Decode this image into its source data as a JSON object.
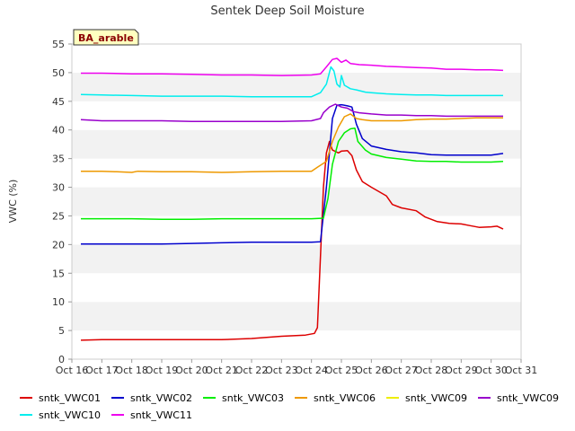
{
  "chart_data": {
    "type": "line",
    "title": "Sentek Deep Soil Moisture",
    "ylabel": "VWC (%)",
    "xlabel": "",
    "badge": "BA_arable",
    "xlim": [
      16,
      31
    ],
    "ylim": [
      0,
      55
    ],
    "x_ticks": [
      "Oct 16",
      "Oct 17",
      "Oct 18",
      "Oct 19",
      "Oct 20",
      "Oct 21",
      "Oct 22",
      "Oct 23",
      "Oct 24",
      "Oct 25",
      "Oct 26",
      "Oct 27",
      "Oct 28",
      "Oct 29",
      "Oct 30",
      "Oct 31"
    ],
    "y_ticks": [
      0,
      5,
      10,
      15,
      20,
      25,
      30,
      35,
      40,
      45,
      50,
      55
    ],
    "grid": "horizontal bands",
    "legend_position": "bottom",
    "series": [
      {
        "name": "sntk_VWC01",
        "color": "#dd0000",
        "points": [
          [
            16.3,
            3.3
          ],
          [
            17,
            3.4
          ],
          [
            18,
            3.4
          ],
          [
            19,
            3.4
          ],
          [
            20,
            3.4
          ],
          [
            21,
            3.4
          ],
          [
            22,
            3.6
          ],
          [
            23,
            4.0
          ],
          [
            23.8,
            4.2
          ],
          [
            24.1,
            4.5
          ],
          [
            24.2,
            5.5
          ],
          [
            24.4,
            30
          ],
          [
            24.5,
            36
          ],
          [
            24.6,
            38
          ],
          [
            24.7,
            36.5
          ],
          [
            24.9,
            36
          ],
          [
            25.0,
            36.3
          ],
          [
            25.2,
            36.4
          ],
          [
            25.35,
            35.5
          ],
          [
            25.5,
            33
          ],
          [
            25.7,
            31
          ],
          [
            26,
            30
          ],
          [
            26.5,
            28.5
          ],
          [
            26.7,
            27
          ],
          [
            27,
            26.4
          ],
          [
            27.5,
            25.9
          ],
          [
            27.8,
            24.8
          ],
          [
            28.2,
            24
          ],
          [
            28.6,
            23.7
          ],
          [
            29,
            23.6
          ],
          [
            29.3,
            23.3
          ],
          [
            29.6,
            23
          ],
          [
            30,
            23.1
          ],
          [
            30.2,
            23.2
          ],
          [
            30.4,
            22.7
          ]
        ]
      },
      {
        "name": "sntk_VWC02",
        "color": "#0000cc",
        "points": [
          [
            16.3,
            20.1
          ],
          [
            17,
            20.1
          ],
          [
            18,
            20.1
          ],
          [
            19,
            20.1
          ],
          [
            20,
            20.2
          ],
          [
            21,
            20.3
          ],
          [
            22,
            20.4
          ],
          [
            23,
            20.4
          ],
          [
            24.0,
            20.4
          ],
          [
            24.3,
            20.5
          ],
          [
            24.5,
            30
          ],
          [
            24.7,
            42
          ],
          [
            24.85,
            44.3
          ],
          [
            25.0,
            44.4
          ],
          [
            25.2,
            44.2
          ],
          [
            25.35,
            44
          ],
          [
            25.5,
            41
          ],
          [
            25.7,
            38.5
          ],
          [
            26,
            37.2
          ],
          [
            26.5,
            36.6
          ],
          [
            27,
            36.2
          ],
          [
            27.5,
            36
          ],
          [
            28,
            35.7
          ],
          [
            28.5,
            35.6
          ],
          [
            29,
            35.6
          ],
          [
            29.5,
            35.6
          ],
          [
            30,
            35.6
          ],
          [
            30.4,
            35.9
          ]
        ]
      },
      {
        "name": "sntk_VWC03",
        "color": "#00ee00",
        "points": [
          [
            16.3,
            24.5
          ],
          [
            17,
            24.5
          ],
          [
            18,
            24.5
          ],
          [
            19,
            24.4
          ],
          [
            20,
            24.4
          ],
          [
            21,
            24.5
          ],
          [
            22,
            24.5
          ],
          [
            23,
            24.5
          ],
          [
            24.0,
            24.5
          ],
          [
            24.4,
            24.6
          ],
          [
            24.55,
            28
          ],
          [
            24.7,
            34
          ],
          [
            24.9,
            38
          ],
          [
            25.1,
            39.5
          ],
          [
            25.3,
            40.2
          ],
          [
            25.45,
            40.3
          ],
          [
            25.55,
            38
          ],
          [
            25.8,
            36.5
          ],
          [
            26,
            35.8
          ],
          [
            26.5,
            35.2
          ],
          [
            27,
            34.9
          ],
          [
            27.5,
            34.6
          ],
          [
            28,
            34.5
          ],
          [
            28.5,
            34.5
          ],
          [
            29,
            34.4
          ],
          [
            29.5,
            34.4
          ],
          [
            30,
            34.4
          ],
          [
            30.4,
            34.5
          ]
        ]
      },
      {
        "name": "sntk_VWC06",
        "color": "#ee9900",
        "points": [
          [
            16.3,
            32.8
          ],
          [
            17,
            32.8
          ],
          [
            17.5,
            32.7
          ],
          [
            18,
            32.6
          ],
          [
            18.2,
            32.8
          ],
          [
            19,
            32.7
          ],
          [
            20,
            32.7
          ],
          [
            21,
            32.6
          ],
          [
            22,
            32.7
          ],
          [
            23,
            32.8
          ],
          [
            24.0,
            32.8
          ],
          [
            24.2,
            33.5
          ],
          [
            24.5,
            34.5
          ],
          [
            24.7,
            38
          ],
          [
            24.9,
            40.5
          ],
          [
            25.1,
            42.3
          ],
          [
            25.3,
            42.8
          ],
          [
            25.5,
            42
          ],
          [
            25.7,
            41.8
          ],
          [
            26,
            41.6
          ],
          [
            26.5,
            41.6
          ],
          [
            27,
            41.6
          ],
          [
            27.5,
            41.8
          ],
          [
            28,
            41.9
          ],
          [
            28.5,
            41.9
          ],
          [
            29,
            42
          ],
          [
            29.5,
            42.1
          ],
          [
            30,
            42.1
          ],
          [
            30.4,
            42.1
          ]
        ]
      },
      {
        "name": "sntk_VWC09",
        "color": "#eeee00",
        "points": []
      },
      {
        "name": "sntk_VWC09",
        "color": "#9900cc",
        "points": [
          [
            16.3,
            41.8
          ],
          [
            17,
            41.6
          ],
          [
            18,
            41.6
          ],
          [
            19,
            41.6
          ],
          [
            20,
            41.5
          ],
          [
            21,
            41.5
          ],
          [
            22,
            41.5
          ],
          [
            23,
            41.5
          ],
          [
            24.0,
            41.6
          ],
          [
            24.3,
            42
          ],
          [
            24.4,
            43
          ],
          [
            24.6,
            44
          ],
          [
            24.8,
            44.5
          ],
          [
            25.0,
            44
          ],
          [
            25.2,
            43.8
          ],
          [
            25.4,
            43.2
          ],
          [
            25.6,
            43
          ],
          [
            26,
            42.8
          ],
          [
            26.5,
            42.6
          ],
          [
            27,
            42.6
          ],
          [
            27.5,
            42.5
          ],
          [
            28,
            42.5
          ],
          [
            28.5,
            42.4
          ],
          [
            29,
            42.4
          ],
          [
            29.5,
            42.4
          ],
          [
            30,
            42.4
          ],
          [
            30.4,
            42.4
          ]
        ]
      },
      {
        "name": "sntk_VWC10",
        "color": "#00eeee",
        "points": [
          [
            16.3,
            46.2
          ],
          [
            17,
            46.1
          ],
          [
            18,
            46
          ],
          [
            19,
            45.9
          ],
          [
            20,
            45.9
          ],
          [
            21,
            45.9
          ],
          [
            22,
            45.8
          ],
          [
            23,
            45.8
          ],
          [
            24.0,
            45.8
          ],
          [
            24.3,
            46.5
          ],
          [
            24.5,
            48
          ],
          [
            24.65,
            51
          ],
          [
            24.75,
            50.3
          ],
          [
            24.85,
            48
          ],
          [
            24.95,
            47.5
          ],
          [
            25.0,
            49.5
          ],
          [
            25.1,
            47.8
          ],
          [
            25.3,
            47.2
          ],
          [
            25.5,
            47
          ],
          [
            25.8,
            46.6
          ],
          [
            26,
            46.5
          ],
          [
            26.5,
            46.3
          ],
          [
            27,
            46.2
          ],
          [
            27.5,
            46.1
          ],
          [
            28,
            46.1
          ],
          [
            28.5,
            46
          ],
          [
            29,
            46
          ],
          [
            29.5,
            46
          ],
          [
            30,
            46
          ],
          [
            30.4,
            46
          ]
        ]
      },
      {
        "name": "sntk_VWC11",
        "color": "#ee00ee",
        "points": [
          [
            16.3,
            49.9
          ],
          [
            17,
            49.9
          ],
          [
            18,
            49.8
          ],
          [
            19,
            49.8
          ],
          [
            20,
            49.7
          ],
          [
            21,
            49.6
          ],
          [
            22,
            49.6
          ],
          [
            23,
            49.5
          ],
          [
            24.0,
            49.6
          ],
          [
            24.3,
            49.8
          ],
          [
            24.5,
            51
          ],
          [
            24.7,
            52.3
          ],
          [
            24.85,
            52.5
          ],
          [
            25.0,
            51.8
          ],
          [
            25.15,
            52.2
          ],
          [
            25.3,
            51.6
          ],
          [
            25.6,
            51.4
          ],
          [
            26,
            51.3
          ],
          [
            26.5,
            51.1
          ],
          [
            27,
            51
          ],
          [
            27.5,
            50.9
          ],
          [
            28,
            50.8
          ],
          [
            28.5,
            50.6
          ],
          [
            29,
            50.6
          ],
          [
            29.5,
            50.5
          ],
          [
            30,
            50.5
          ],
          [
            30.4,
            50.4
          ]
        ]
      }
    ]
  }
}
